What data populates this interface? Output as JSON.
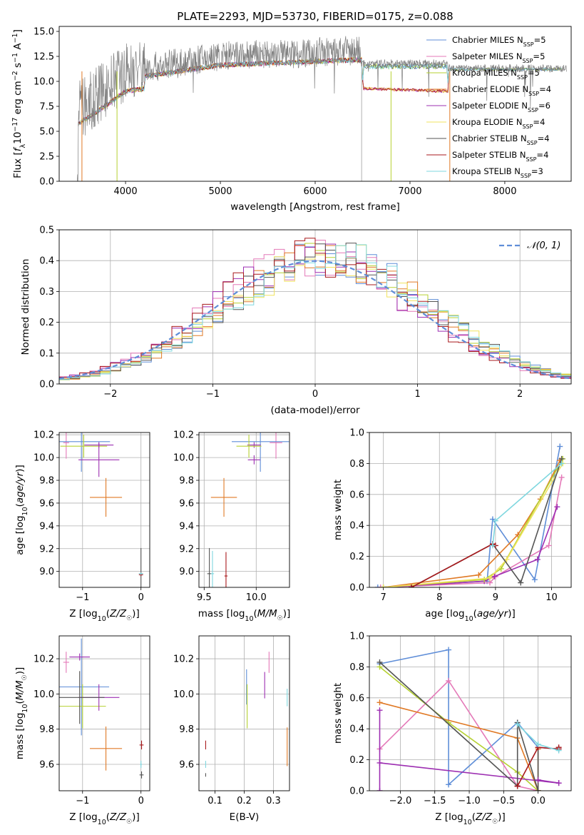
{
  "chart_data": [
    {
      "id": "spectrum",
      "type": "line",
      "title": "PLATE=2293, MJD=53730, FIBERID=0175, z=0.088",
      "xlabel": "wavelength [Angstrom, rest frame]",
      "ylabel": "Flux [f$_\\lambda$10$^{-17}$ erg cm$^{-2}$ s$^{-1}$ A$^{-1}$]",
      "ylabel_parts": {
        "a": "Flux [",
        "b": "f",
        "c": "λ",
        "d": "10",
        "e": "−17",
        "f": " erg cm",
        "g": "−2",
        "h": " s",
        "i": "−1",
        "j": " A",
        "k": "−1",
        "l": "]"
      },
      "xlim": [
        3300,
        8700
      ],
      "ylim": [
        0,
        15.5
      ],
      "xticks": [
        4000,
        5000,
        6000,
        7000,
        8000
      ],
      "yticks": [
        0.0,
        2.5,
        5.0,
        7.5,
        10.0,
        12.5,
        15.0
      ],
      "grid": false,
      "legend_position": "upper-right",
      "legend": [
        {
          "name": "Chabrier MILES",
          "nssp": "5",
          "color": "#5f8ed8"
        },
        {
          "name": "Salpeter MILES",
          "nssp": "5",
          "color": "#e479b8"
        },
        {
          "name": "Kroupa MILES",
          "nssp": "5",
          "color": "#b6d132"
        },
        {
          "name": "Chabrier ELODIE",
          "nssp": "4",
          "color": "#e07a26"
        },
        {
          "name": "Salpeter ELODIE",
          "nssp": "6",
          "color": "#9d2fb2"
        },
        {
          "name": "Kroupa ELODIE",
          "nssp": "4",
          "color": "#f1e35f"
        },
        {
          "name": "Chabrier STELIB",
          "nssp": "4",
          "color": "#555555"
        },
        {
          "name": "Salpeter STELIB",
          "nssp": "4",
          "color": "#a8191c"
        },
        {
          "name": "Kroupa STELIB",
          "nssp": "3",
          "color": "#7fd7df"
        }
      ],
      "legend_suffix": {
        "n": "N",
        "sub": "SSP",
        "eq": "="
      },
      "data_color": "#808080"
    },
    {
      "id": "residuals",
      "type": "histogram",
      "xlabel": "(data-model)/error",
      "ylabel": "Normed distribution",
      "xlim": [
        -2.5,
        2.5
      ],
      "ylim": [
        0,
        0.5
      ],
      "xticks": [
        -2,
        -1,
        0,
        1,
        2
      ],
      "yticks": [
        0.0,
        0.1,
        0.2,
        0.3,
        0.4,
        0.5
      ],
      "grid": true,
      "legend_position": "upper-right",
      "legend": [
        {
          "name": "𝒩(0, 1)",
          "color": "#5f8ed8",
          "style": "dashed"
        }
      ],
      "curve": "normal(0,1)"
    },
    {
      "id": "age-vs-Z",
      "type": "errorbar",
      "xlabel": "Z [log$_{10}$(Z/Z$_\\odot$)]",
      "ylabel": "age  [log$_{10}$(age/yr)]",
      "xlim": [
        -1.4,
        0.15
      ],
      "ylim": [
        8.86,
        10.22
      ],
      "xticks": [
        -1,
        0
      ],
      "yticks": [
        9.0,
        9.2,
        9.4,
        9.6,
        9.8,
        10.0,
        10.2
      ],
      "grid": true,
      "points": [
        {
          "color": "#e479b8",
          "x": -1.28,
          "xerr": 0.1,
          "y": 10.13,
          "yerr": 0.28
        },
        {
          "color": "#5f8ed8",
          "x": -1.02,
          "xerr": 0.98,
          "y": 10.14,
          "yerr": 0.53
        },
        {
          "color": "#9d2fb2",
          "x": -0.72,
          "xerr": 0.5,
          "y": 10.11,
          "yerr": 0.05
        },
        {
          "color": "#b6d132",
          "x": -0.98,
          "xerr": 0.8,
          "y": 10.1,
          "yerr": 0.2
        },
        {
          "color": "#9d2fb2",
          "x": -0.72,
          "xerr": 0.7,
          "y": 9.98,
          "yerr": 0.3
        },
        {
          "color": "#e07a26",
          "x": -0.6,
          "xerr": 0.55,
          "y": 9.65,
          "yerr": 0.34
        },
        {
          "color": "#555555",
          "x": 0.0,
          "xerr": 0.07,
          "y": 8.98,
          "yerr": 0.45
        },
        {
          "color": "#a8191c",
          "x": 0.0,
          "xerr": 0.07,
          "y": 8.97,
          "yerr": 0.02
        },
        {
          "color": "#7fd7df",
          "x": 0.0,
          "xerr": 0.07,
          "y": 8.98,
          "yerr": 0.02
        }
      ]
    },
    {
      "id": "age-vs-mass",
      "type": "errorbar",
      "xlabel": "mass [log$_{10}$(M/M$_\\odot$)]",
      "ylabel": "",
      "xlim": [
        9.45,
        10.32
      ],
      "ylim": [
        8.86,
        10.22
      ],
      "xticks": [
        9.5,
        10.0
      ],
      "yticks": [
        9.0,
        9.2,
        9.4,
        9.6,
        9.8,
        10.0,
        10.2
      ],
      "grid": true,
      "points": [
        {
          "color": "#e479b8",
          "x": 10.19,
          "xerr": 0.12,
          "y": 10.13,
          "yerr": 0.28
        },
        {
          "color": "#5f8ed8",
          "x": 10.04,
          "xerr": 0.55,
          "y": 10.14,
          "yerr": 0.53
        },
        {
          "color": "#9d2fb2",
          "x": 9.98,
          "xerr": 0.13,
          "y": 10.11,
          "yerr": 0.05
        },
        {
          "color": "#b6d132",
          "x": 9.93,
          "xerr": 0.24,
          "y": 10.1,
          "yerr": 0.2
        },
        {
          "color": "#9d2fb2",
          "x": 9.98,
          "xerr": 0.12,
          "y": 9.98,
          "yerr": 0.08
        },
        {
          "color": "#e07a26",
          "x": 9.69,
          "xerr": 0.25,
          "y": 9.65,
          "yerr": 0.34
        },
        {
          "color": "#555555",
          "x": 9.55,
          "xerr": 0.04,
          "y": 8.98,
          "yerr": 0.45
        },
        {
          "color": "#7fd7df",
          "x": 9.58,
          "xerr": 0.03,
          "y": 8.98,
          "yerr": 0.4
        },
        {
          "color": "#a8191c",
          "x": 9.71,
          "xerr": 0.03,
          "y": 8.96,
          "yerr": 0.42
        }
      ]
    },
    {
      "id": "weight-vs-age",
      "type": "line",
      "xlabel": "age  [log$_{10}$(age/yr)]",
      "ylabel": "mass weight",
      "xlim": [
        6.75,
        10.35
      ],
      "ylim": [
        0,
        1.0
      ],
      "xticks": [
        7,
        8,
        9,
        10
      ],
      "yticks": [
        0.0,
        0.2,
        0.4,
        0.6,
        0.8,
        1.0
      ],
      "grid": true,
      "series": [
        {
          "color": "#5f8ed8",
          "x": [
            6.9,
            8.85,
            8.95,
            9.7,
            10.15
          ],
          "y": [
            0.0,
            0.04,
            0.44,
            0.05,
            0.91
          ]
        },
        {
          "color": "#e479b8",
          "x": [
            6.95,
            8.9,
            9.0,
            9.95,
            10.18
          ],
          "y": [
            0.0,
            0.03,
            0.07,
            0.27,
            0.71
          ]
        },
        {
          "color": "#9d2fb2",
          "x": [
            7.0,
            8.8,
            8.98,
            9.75,
            10.1
          ],
          "y": [
            0.0,
            0.04,
            0.07,
            0.18,
            0.52
          ]
        },
        {
          "color": "#e07a26",
          "x": [
            7.0,
            8.7,
            9.4,
            9.8,
            10.15
          ],
          "y": [
            0.0,
            0.08,
            0.34,
            0.57,
            0.82
          ]
        },
        {
          "color": "#b6d132",
          "x": [
            7.0,
            8.8,
            9.1,
            10.2
          ],
          "y": [
            0.0,
            0.05,
            0.12,
            0.83
          ]
        },
        {
          "color": "#f1e35f",
          "x": [
            7.0,
            8.9,
            9.2,
            10.2
          ],
          "y": [
            0.0,
            0.06,
            0.18,
            0.8
          ]
        },
        {
          "color": "#555555",
          "x": [
            7.5,
            8.95,
            9.45,
            10.18
          ],
          "y": [
            0.0,
            0.28,
            0.03,
            0.83
          ]
        },
        {
          "color": "#a8191c",
          "x": [
            7.5,
            8.95,
            9.0
          ],
          "y": [
            0.0,
            0.28,
            0.27
          ]
        },
        {
          "color": "#7fd7df",
          "x": [
            8.95,
            9.0,
            10.18
          ],
          "y": [
            0.27,
            0.43,
            0.8
          ]
        }
      ]
    },
    {
      "id": "mass-vs-Z",
      "type": "errorbar",
      "xlabel": "Z [log$_{10}$(Z/Z$_\\odot$)]",
      "ylabel": "mass [log$_{10}$(M/M$_\\odot$)]",
      "xlim": [
        -1.4,
        0.15
      ],
      "ylim": [
        9.45,
        10.33
      ],
      "xticks": [
        -1,
        0
      ],
      "yticks": [
        9.6,
        9.8,
        10.0,
        10.2
      ],
      "grid": true,
      "points": [
        {
          "color": "#e479b8",
          "x": -1.28,
          "xerr": 0.1,
          "y": 10.18,
          "yerr": 0.12
        },
        {
          "color": "#5f8ed8",
          "x": -1.02,
          "xerr": 0.95,
          "y": 10.04,
          "yerr": 0.55
        },
        {
          "color": "#9d2fb2",
          "x": -1.05,
          "xerr": 0.35,
          "y": 10.21,
          "yerr": 0.04
        },
        {
          "color": "#b6d132",
          "x": -1.0,
          "xerr": 0.8,
          "y": 9.93,
          "yerr": 0.25
        },
        {
          "color": "#9d2fb2",
          "x": -0.72,
          "xerr": 0.7,
          "y": 9.98,
          "yerr": 0.15
        },
        {
          "color": "#555555",
          "x": -1.05,
          "xerr": 0.85,
          "y": 9.98,
          "yerr": 0.3
        },
        {
          "color": "#e07a26",
          "x": -0.6,
          "xerr": 0.55,
          "y": 9.69,
          "yerr": 0.25
        },
        {
          "color": "#a8191c",
          "x": 0.01,
          "xerr": 0.07,
          "y": 9.71,
          "yerr": 0.05
        },
        {
          "color": "#7fd7df",
          "x": 0.0,
          "xerr": 0.03,
          "y": 9.6,
          "yerr": 0.04
        },
        {
          "color": "#555555",
          "x": 0.01,
          "xerr": 0.07,
          "y": 9.54,
          "yerr": 0.04
        }
      ]
    },
    {
      "id": "mass-vs-ebv",
      "type": "errorbar",
      "xlabel": "E(B-V)",
      "ylabel": "",
      "xlim": [
        0.045,
        0.355
      ],
      "ylim": [
        9.45,
        10.33
      ],
      "xticks": [
        0.1,
        0.2,
        0.3
      ],
      "yticks": [
        9.6,
        9.8,
        10.0,
        10.2
      ],
      "grid": true,
      "points": [
        {
          "color": "#a8191c",
          "x": 0.068,
          "y": 9.71,
          "yerr": 0.05
        },
        {
          "color": "#7fd7df",
          "x": 0.068,
          "y": 9.6,
          "yerr": 0.04
        },
        {
          "color": "#555555",
          "x": 0.068,
          "y": 9.54,
          "yerr": 0.02
        },
        {
          "color": "#5f8ed8",
          "x": 0.208,
          "y": 10.04,
          "yerr": 0.2
        },
        {
          "color": "#b6d132",
          "x": 0.21,
          "y": 9.93,
          "yerr": 0.25
        },
        {
          "color": "#9d2fb2",
          "x": 0.27,
          "y": 10.05,
          "yerr": 0.15
        },
        {
          "color": "#e479b8",
          "x": 0.285,
          "y": 10.18,
          "yerr": 0.12
        },
        {
          "color": "#7fd7df",
          "x": 0.347,
          "y": 9.98,
          "yerr": 0.1
        },
        {
          "color": "#e07a26",
          "x": 0.347,
          "y": 9.7,
          "yerr": 0.22
        }
      ]
    },
    {
      "id": "weight-vs-Z",
      "type": "line",
      "xlabel": "Z [log$_{10}$(Z/Z$_\\odot$)]",
      "ylabel": "mass weight",
      "xlim": [
        -2.45,
        0.48
      ],
      "ylim": [
        0,
        1.0
      ],
      "xticks": [
        -2.0,
        -1.5,
        -1.0,
        -0.5,
        0.0
      ],
      "yticks": [
        0.0,
        0.2,
        0.4,
        0.6,
        0.8,
        1.0
      ],
      "grid": true,
      "series": [
        {
          "color": "#5f8ed8",
          "x": [
            -2.3,
            -1.3,
            -1.3,
            -0.3,
            0.0,
            0.3
          ],
          "y": [
            0.82,
            0.91,
            0.04,
            0.44,
            0.28,
            0.27
          ]
        },
        {
          "color": "#e479b8",
          "x": [
            -2.3,
            -1.3,
            -0.3,
            0.0
          ],
          "y": [
            0.27,
            0.71,
            0.03,
            0.0
          ]
        },
        {
          "color": "#b6d132",
          "x": [
            -2.3,
            -1.3,
            -0.3,
            0.0
          ],
          "y": [
            0.8,
            0.44,
            0.12,
            0.0
          ]
        },
        {
          "color": "#e07a26",
          "x": [
            -2.3,
            -0.3,
            0.0,
            0.0
          ],
          "y": [
            0.57,
            0.34,
            0.0,
            0.27
          ]
        },
        {
          "color": "#9d2fb2",
          "x": [
            -2.3,
            -2.3,
            -2.3,
            0.3
          ],
          "y": [
            0.52,
            0.0,
            0.18,
            0.05
          ]
        },
        {
          "color": "#555555",
          "x": [
            -2.3,
            -0.3,
            -0.3,
            0.0,
            0.0
          ],
          "y": [
            0.83,
            0.03,
            0.44,
            0.0,
            0.28
          ]
        },
        {
          "color": "#a8191c",
          "x": [
            -0.3,
            0.0,
            0.3,
            0.3
          ],
          "y": [
            0.03,
            0.28,
            0.27,
            0.28
          ]
        },
        {
          "color": "#7fd7df",
          "x": [
            -0.3,
            0.0,
            0.3
          ],
          "y": [
            0.43,
            0.3,
            0.26
          ]
        },
        {
          "color": "#9d2fb2",
          "x": [
            0.0,
            0.3
          ],
          "y": [
            0.07,
            0.05
          ]
        }
      ]
    }
  ]
}
